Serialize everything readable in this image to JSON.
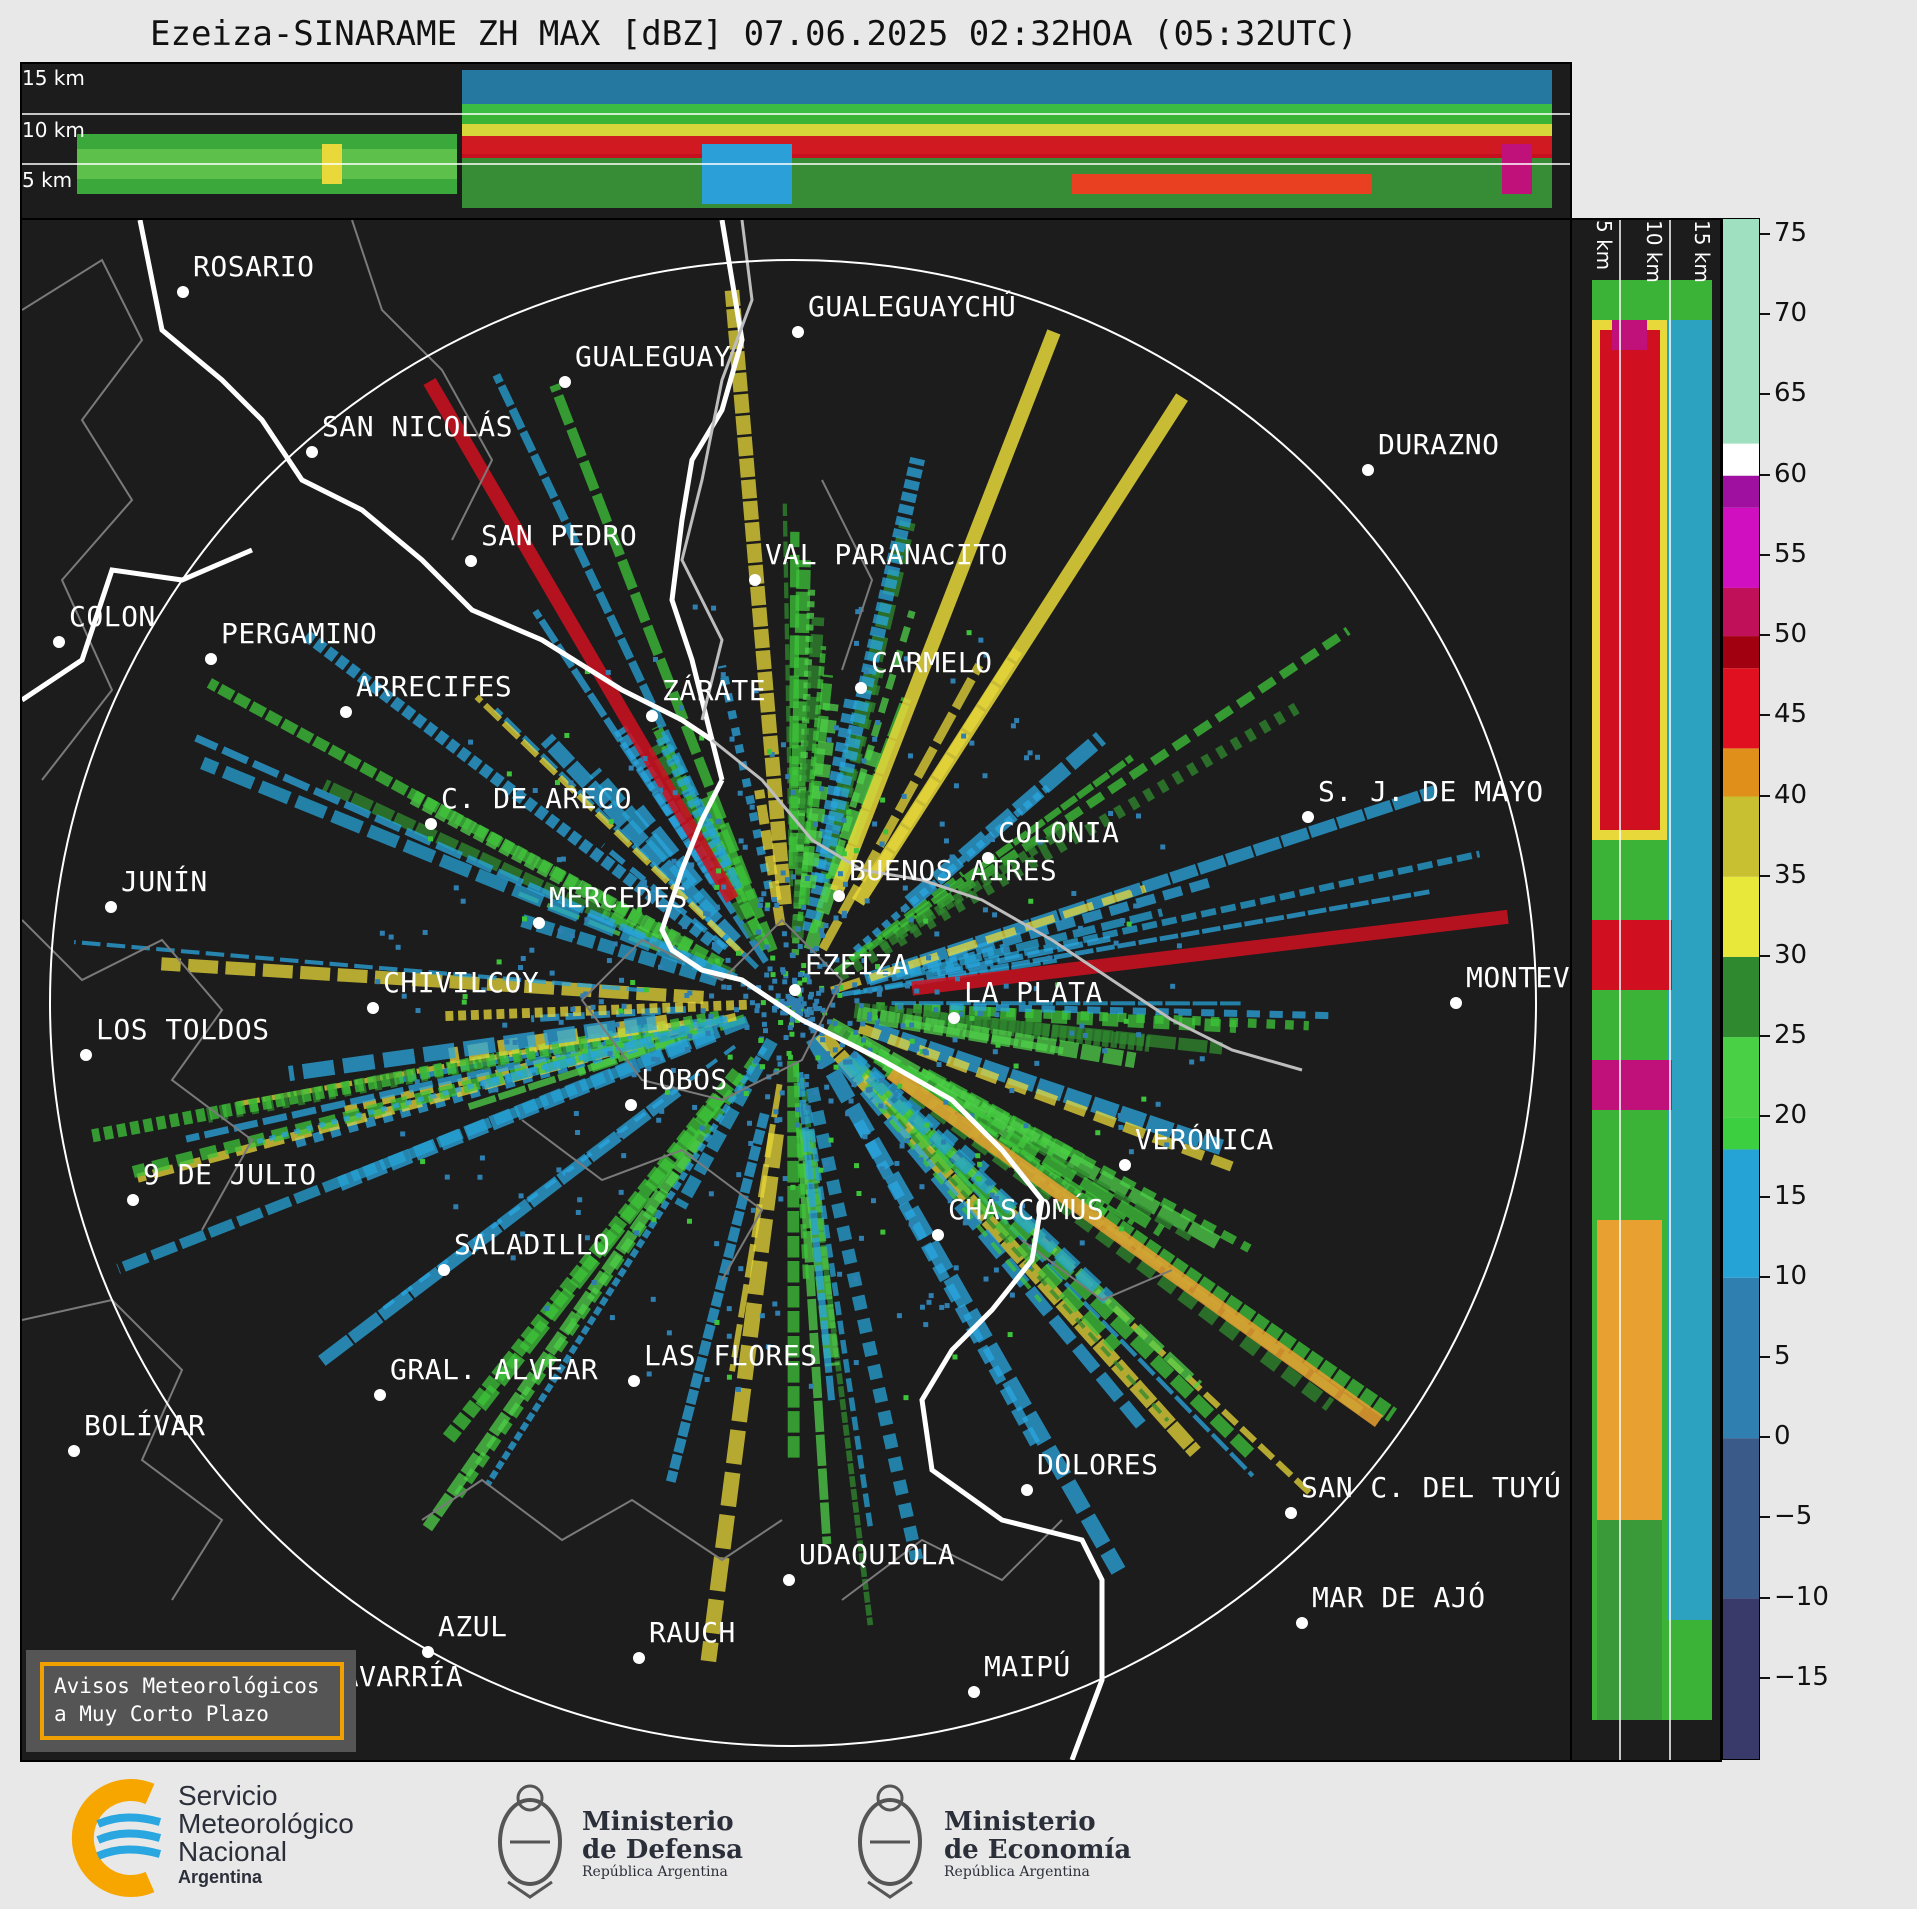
{
  "title": "Ezeiza-SINARAME ZH MAX [dBZ] 07.06.2025 02:32HOA (05:32UTC)",
  "altitude_labels": [
    "15 km",
    "10 km",
    "5 km"
  ],
  "cities": [
    {
      "name": "ROSARIO"
    },
    {
      "name": "GUALEGUAYCHÚ"
    },
    {
      "name": "GUALEGUAY"
    },
    {
      "name": "SAN NICOLÁS"
    },
    {
      "name": "DURAZNO"
    },
    {
      "name": "SAN PEDRO"
    },
    {
      "name": "VAL PARANACITO"
    },
    {
      "name": "COLON"
    },
    {
      "name": "PERGAMINO"
    },
    {
      "name": "CARMELO"
    },
    {
      "name": "ARRECIFES"
    },
    {
      "name": "ZÁRATE"
    },
    {
      "name": "S. J. DE MAYO"
    },
    {
      "name": "C. DE ARECO"
    },
    {
      "name": "COLONIA"
    },
    {
      "name": "JUNÍN"
    },
    {
      "name": "MERCEDES"
    },
    {
      "name": "BUENOS AIRES"
    },
    {
      "name": "EZEIZA"
    },
    {
      "name": "MONTEVIDEO"
    },
    {
      "name": "CHIVILCOY"
    },
    {
      "name": "LA PLATA"
    },
    {
      "name": "LOS TOLDOS"
    },
    {
      "name": "LOBOS"
    },
    {
      "name": "VERÓNICA"
    },
    {
      "name": "9 DE JULIO"
    },
    {
      "name": "CHASCOMÚS"
    },
    {
      "name": "SALADILLO"
    },
    {
      "name": "GRAL. ALVEAR"
    },
    {
      "name": "LAS FLORES"
    },
    {
      "name": "BOLÍVAR"
    },
    {
      "name": "DOLORES"
    },
    {
      "name": "SAN C. DEL TUYÚ"
    },
    {
      "name": "UDAQUIOLA"
    },
    {
      "name": "MAR DE AJÓ"
    },
    {
      "name": "AZUL"
    },
    {
      "name": "RAUCH"
    },
    {
      "name": "OLAVARRÍA"
    },
    {
      "name": "MAIPÚ"
    }
  ],
  "colorbar": {
    "unit": "dBZ",
    "ticks": [
      "75",
      "70",
      "65",
      "60",
      "55",
      "50",
      "45",
      "40",
      "35",
      "30",
      "25",
      "20",
      "15",
      "10",
      "5",
      "0",
      "−5",
      "−10",
      "−15"
    ],
    "range": [
      -20,
      76
    ]
  },
  "warning_box": {
    "line1": "Avisos Meteorológicos",
    "line2": "a Muy Corto Plazo"
  },
  "footer": {
    "smn": {
      "l1": "Servicio",
      "l2": "Meteorológico",
      "l3": "Nacional",
      "l4": "Argentina"
    },
    "defensa": {
      "l1": "Ministerio",
      "l2": "de Defensa",
      "l3": "República Argentina"
    },
    "economia": {
      "l1": "Ministerio",
      "l2": "de Economía",
      "l3": "República Argentina"
    }
  },
  "colors": {
    "background": "#1c1c1c",
    "accent": "#f0a000",
    "smn_orange": "#f7a600",
    "smn_blue": "#2aa7e0"
  }
}
